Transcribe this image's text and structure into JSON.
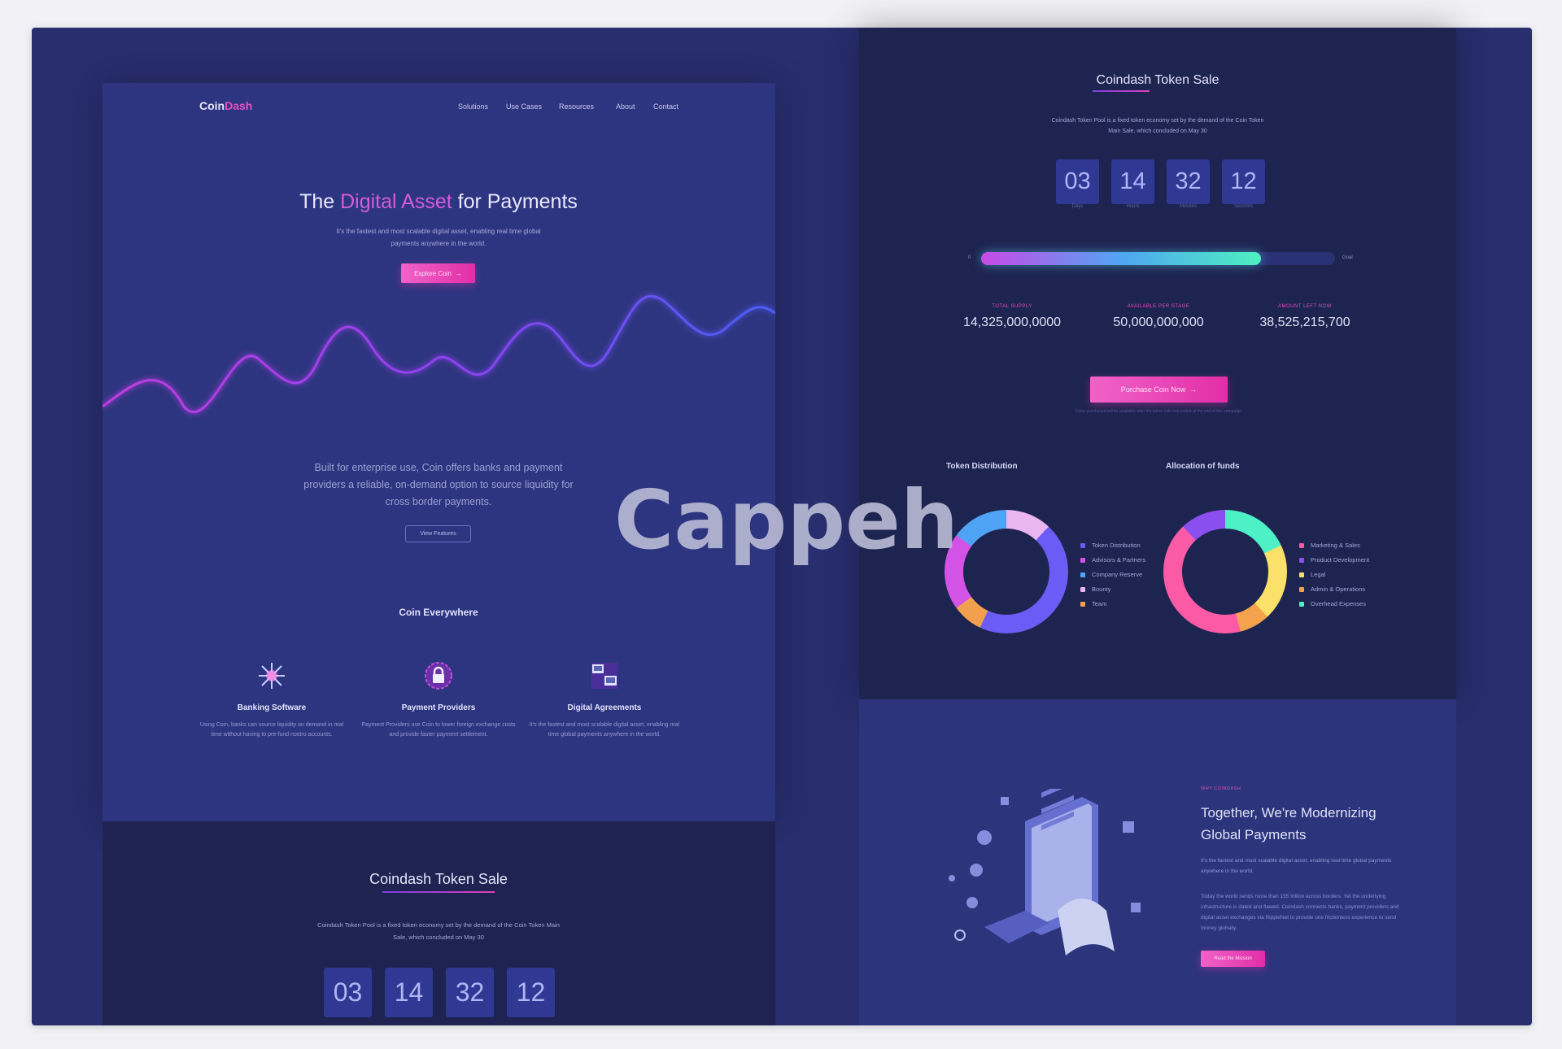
{
  "left_page": {
    "logo": {
      "part1": "Coin",
      "part2": "Dash"
    },
    "nav": [
      "Solutions",
      "Use Cases",
      "Resources",
      "About",
      "Contact"
    ],
    "hero": {
      "title_pre": "The ",
      "title_highlight": "Digital Asset",
      "title_post": " for Payments",
      "subtitle": "It's the fastest and most scalable digital asset, enabling real time global payments anywhere in the world.",
      "button": "Explore Coin"
    },
    "intro": "Built for enterprise use, Coin offers banks and payment providers a reliable, on-demand option to source liquidity for cross border payments.",
    "view_features": "View Features",
    "section_title": "Coin Everywhere",
    "features": [
      {
        "title": "Banking Software",
        "desc": "Using Coin, banks can source liquidity on demand in real time without having to pre-fund nostro accounts.",
        "icon": "network-icon"
      },
      {
        "title": "Payment Providers",
        "desc": "Payment Providers use Coin to lower foreign exchange costs and provide faster payment settlement.",
        "icon": "lock-icon"
      },
      {
        "title": "Digital Agreements",
        "desc": "It's the fastest and most scalable digital asset, enabling real time global payments anywhere in the world.",
        "icon": "devices-icon"
      }
    ],
    "token_sale": {
      "title": "Coindash Token Sale",
      "desc": "Coindash Token Pool is a fixed token economy set by the demand of the Coin Token Main Sale, which concluded on May 30",
      "countdown": [
        "03",
        "14",
        "32",
        "12"
      ]
    }
  },
  "right_page": {
    "token_sale": {
      "title": "Coindash Token Sale",
      "desc": "Coindash Token Pool is a fixed token economy set by the demand of the Coin Token Main Sale, which concluded on May 30",
      "countdown": [
        "03",
        "14",
        "32",
        "12"
      ],
      "countdown_labels": [
        "Days",
        "Hours",
        "Minutes",
        "Seconds"
      ],
      "progress": {
        "fraction": 0.79,
        "min_label": "0",
        "max_label": "Goal"
      },
      "stats": [
        {
          "label": "Total Supply",
          "value": "14,325,000,0000"
        },
        {
          "label": "Available per Stage",
          "value": "50,000,000,000"
        },
        {
          "label": "Amount Left Now",
          "value": "38,525,215,700"
        }
      ],
      "button": "Purchase Coin Now",
      "note": "Coins purchased will be available after the token sale has ended at the end of this campaign"
    },
    "charts": [
      {
        "title": "Token Distribution",
        "type": "pie",
        "slices": [
          {
            "name": "Bounty",
            "value": 12,
            "color": "#e9b6f0"
          },
          {
            "name": "Token Distribution",
            "value": 45,
            "color": "#6a5cf4"
          },
          {
            "name": "Team",
            "value": 8,
            "color": "#f2a04e"
          },
          {
            "name": "Advisors & Partners",
            "value": 20,
            "color": "#d353e6"
          },
          {
            "name": "Company Reserve",
            "value": 15,
            "color": "#4fa3f5"
          }
        ],
        "legend": [
          {
            "name": "Token Distribution",
            "color": "#6a5cf4"
          },
          {
            "name": "Advisors & Partners",
            "color": "#d353e6"
          },
          {
            "name": "Company Reserve",
            "color": "#4fa3f5"
          },
          {
            "name": "Bounty",
            "color": "#e9b6f0"
          },
          {
            "name": "Team",
            "color": "#f2a04e"
          }
        ]
      },
      {
        "title": "Allocation of funds",
        "type": "pie",
        "slices": [
          {
            "name": "Overhead Expenses",
            "value": 18,
            "color": "#4ef0c6"
          },
          {
            "name": "Legal",
            "value": 20,
            "color": "#fbe06a"
          },
          {
            "name": "Admin & Operations",
            "value": 8,
            "color": "#f5a24e"
          },
          {
            "name": "Marketing & Sales",
            "value": 42,
            "color": "#fa5aa6"
          },
          {
            "name": "Product Development",
            "value": 12,
            "color": "#8b4ff0"
          }
        ],
        "legend": [
          {
            "name": "Marketing & Sales",
            "color": "#fa5aa6"
          },
          {
            "name": "Product Development",
            "color": "#8b4ff0"
          },
          {
            "name": "Legal",
            "color": "#fbe06a"
          },
          {
            "name": "Admin & Operations",
            "color": "#f5a24e"
          },
          {
            "name": "Overhead Expenses",
            "color": "#4ef0c6"
          }
        ]
      }
    ],
    "about": {
      "eyebrow": "Why Coindash",
      "title": "Together, We're Modernizing Global Payments",
      "p1": "It's the fastest and most scalable digital asset, enabling real time global payments anywhere in the world.",
      "p2": "Today the world sends more than 155 trillion across borders. Yet the underlying infrastructure is dated and flawed. Coindash connects banks, payment providers and digital asset exchanges via RippleNet to provide one frictionless experience to send money globally.",
      "button": "Read the Mission"
    }
  },
  "watermark": "Cappeh",
  "colors": {
    "accent_pink": "#e63cb0",
    "page_bg": "#2e3580",
    "dark_bg": "#1e2450"
  }
}
